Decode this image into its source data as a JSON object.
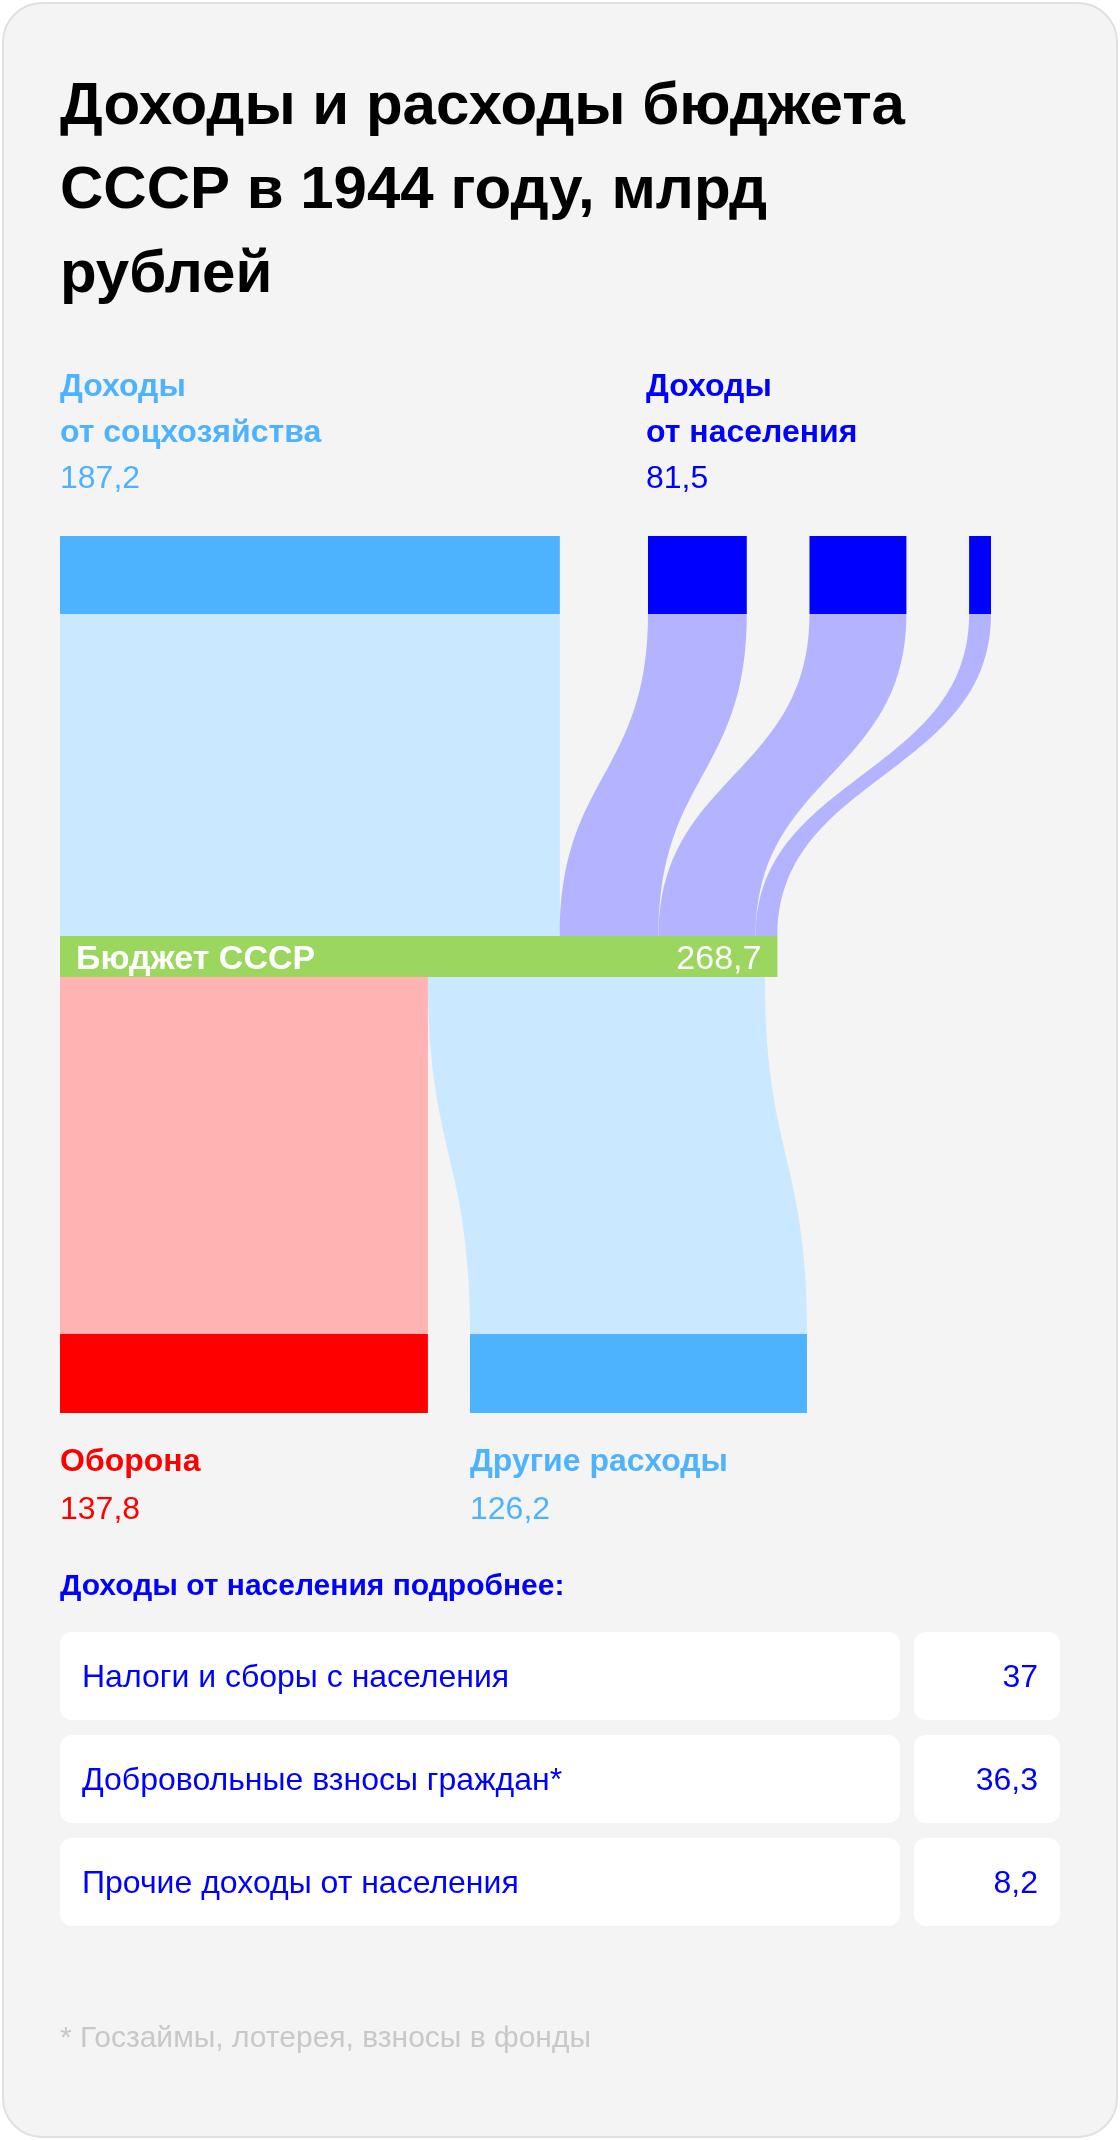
{
  "chart_data": [
    {
      "type": "other",
      "title": "Доходы и расходы бюджета СССР в 1944 году, млрд рублей",
      "categories": [
        "Доходы от соцхозяйства",
        "Доходы от населения",
        "Бюджет СССР",
        "Оборона",
        "Другие расходы"
      ],
      "values": [
        187.2,
        81.5,
        268.7,
        137.8,
        126.2
      ],
      "colors": [
        "#4db3ff",
        "#0000ff",
        "#9bd65f",
        "#ff0000",
        "#4db3ff"
      ],
      "value_labels": [
        "187,2",
        "81,5",
        "268,7",
        "137,8",
        "126,2"
      ]
    },
    {
      "type": "other",
      "title": "Доходы от населения подробнее:",
      "categories": [
        "Налоги и сборы с населения",
        "Добровольные взносы граждан*",
        "Прочие доходы от населения"
      ],
      "values": [
        37,
        36.3,
        8.2
      ],
      "value_labels": [
        "37",
        "36,3",
        "8,2"
      ],
      "annotations": [
        "* Госзаймы, лотерея, взносы в фонды"
      ]
    }
  ]
}
